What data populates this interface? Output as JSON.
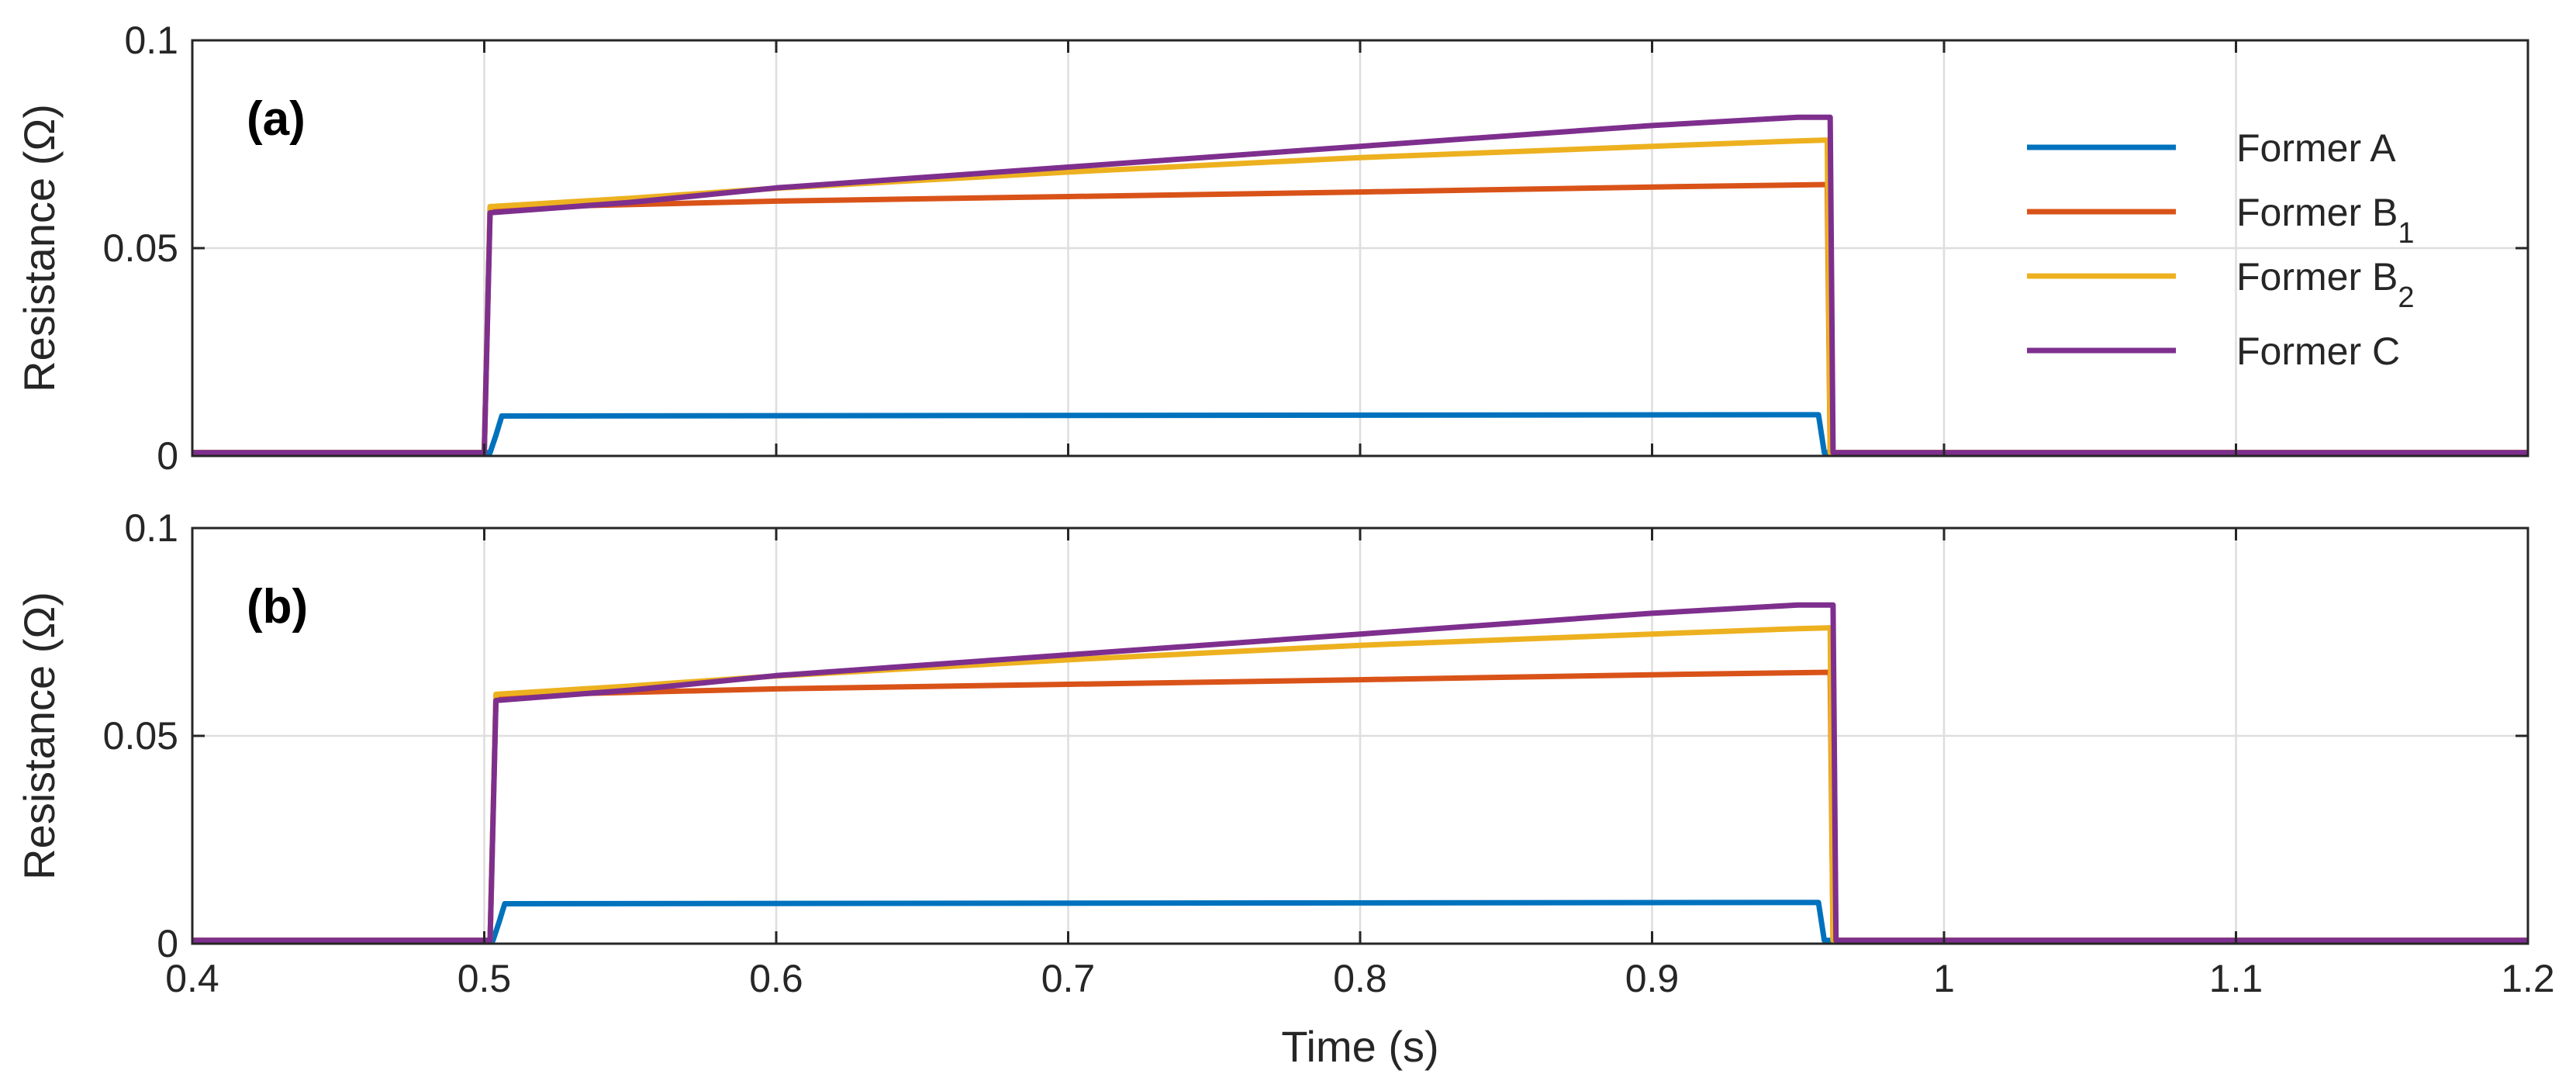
{
  "chart_data": [
    {
      "type": "line",
      "panel_label": "(a)",
      "xlabel": "",
      "ylabel": "Resistance (Ω)",
      "xlim": [
        0.4,
        1.2
      ],
      "ylim": [
        0,
        0.1
      ],
      "xticks": [
        0.4,
        0.5,
        0.6,
        0.7,
        0.8,
        0.9,
        1.0,
        1.1,
        1.2
      ],
      "yticks": [
        0,
        0.05,
        0.1
      ],
      "ytick_labels": [
        "0",
        "0.05",
        "0.1"
      ],
      "grid": true,
      "legend": {
        "placement": "top-right",
        "entries": [
          {
            "series": "Former A",
            "label": "Former A",
            "sub": ""
          },
          {
            "series": "Former B1",
            "label": "Former B",
            "sub": "1"
          },
          {
            "series": "Former B2",
            "label": "Former B",
            "sub": "2"
          },
          {
            "series": "Former C",
            "label": "Former C",
            "sub": ""
          }
        ]
      },
      "series": [
        {
          "name": "Former A",
          "color": "#0072BD",
          "x": [
            0.4,
            0.502,
            0.504,
            0.506,
            0.95,
            0.957,
            0.959,
            1.2
          ],
          "y": [
            0.0008,
            0.0008,
            0.005,
            0.0096,
            0.0099,
            0.0099,
            0.0008,
            0.0008
          ]
        },
        {
          "name": "Former B1",
          "color": "#D95319",
          "x": [
            0.4,
            0.5,
            0.502,
            0.6,
            0.7,
            0.8,
            0.9,
            0.96,
            0.961,
            1.2
          ],
          "y": [
            0.0008,
            0.0008,
            0.0597,
            0.0613,
            0.0624,
            0.0635,
            0.0647,
            0.0653,
            0.0008,
            0.0008
          ]
        },
        {
          "name": "Former B2",
          "color": "#EDB120",
          "x": [
            0.4,
            0.5,
            0.502,
            0.55,
            0.6,
            0.7,
            0.8,
            0.9,
            0.95,
            0.96,
            0.961,
            1.2
          ],
          "y": [
            0.0008,
            0.0008,
            0.06,
            0.062,
            0.0644,
            0.0683,
            0.0718,
            0.0745,
            0.0758,
            0.076,
            0.0008,
            0.0008
          ]
        },
        {
          "name": "Former C",
          "color": "#7E2F8E",
          "x": [
            0.4,
            0.5,
            0.502,
            0.55,
            0.6,
            0.7,
            0.8,
            0.9,
            0.95,
            0.961,
            0.962,
            1.2
          ],
          "y": [
            0.0008,
            0.0008,
            0.0585,
            0.061,
            0.0645,
            0.0695,
            0.0745,
            0.0795,
            0.0815,
            0.0815,
            0.0008,
            0.0008
          ]
        }
      ]
    },
    {
      "type": "line",
      "panel_label": "(b)",
      "xlabel": "Time (s)",
      "ylabel": "Resistance (Ω)",
      "xlim": [
        0.4,
        1.2
      ],
      "ylim": [
        0,
        0.1
      ],
      "xticks": [
        0.4,
        0.5,
        0.6,
        0.7,
        0.8,
        0.9,
        1.0,
        1.1,
        1.2
      ],
      "xtick_labels": [
        "0.4",
        "0.5",
        "0.6",
        "0.7",
        "0.8",
        "0.9",
        "1",
        "1.1",
        "1.2"
      ],
      "yticks": [
        0,
        0.05,
        0.1
      ],
      "ytick_labels": [
        "0",
        "0.05",
        "0.1"
      ],
      "grid": true,
      "series": [
        {
          "name": "Former A",
          "color": "#0072BD",
          "x": [
            0.4,
            0.503,
            0.505,
            0.507,
            0.95,
            0.957,
            0.959,
            1.2
          ],
          "y": [
            0.0008,
            0.0008,
            0.005,
            0.0096,
            0.0099,
            0.0099,
            0.0008,
            0.0008
          ]
        },
        {
          "name": "Former B1",
          "color": "#D95319",
          "x": [
            0.4,
            0.502,
            0.504,
            0.6,
            0.7,
            0.8,
            0.9,
            0.961,
            0.962,
            1.2
          ],
          "y": [
            0.0008,
            0.0008,
            0.0597,
            0.0613,
            0.0624,
            0.0635,
            0.0647,
            0.0653,
            0.0008,
            0.0008
          ]
        },
        {
          "name": "Former B2",
          "color": "#EDB120",
          "x": [
            0.4,
            0.502,
            0.504,
            0.55,
            0.6,
            0.7,
            0.8,
            0.9,
            0.95,
            0.961,
            0.962,
            1.2
          ],
          "y": [
            0.0008,
            0.0008,
            0.06,
            0.062,
            0.0644,
            0.0683,
            0.0718,
            0.0745,
            0.0758,
            0.076,
            0.0008,
            0.0008
          ]
        },
        {
          "name": "Former C",
          "color": "#7E2F8E",
          "x": [
            0.4,
            0.502,
            0.504,
            0.55,
            0.6,
            0.7,
            0.8,
            0.9,
            0.95,
            0.962,
            0.963,
            1.2
          ],
          "y": [
            0.0008,
            0.0008,
            0.0585,
            0.061,
            0.0645,
            0.0695,
            0.0745,
            0.0795,
            0.0815,
            0.0815,
            0.0008,
            0.0008
          ]
        }
      ]
    }
  ]
}
